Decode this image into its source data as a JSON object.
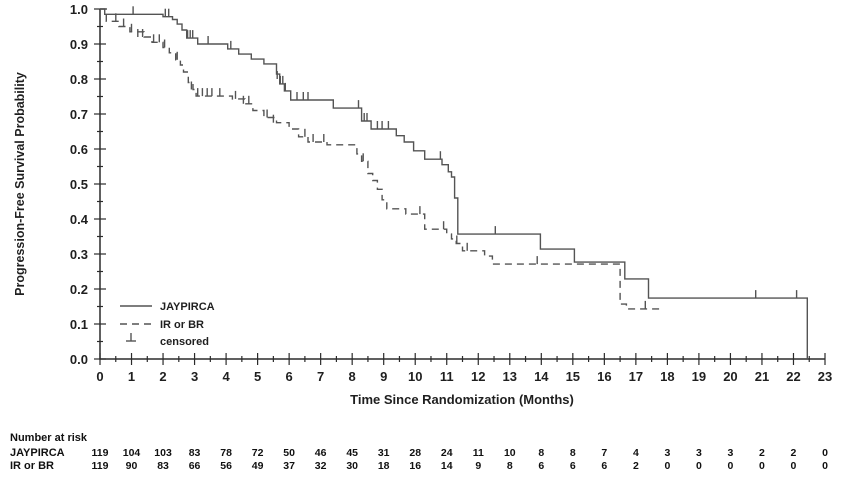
{
  "colors": {
    "background": "#ffffff",
    "axis": "#2b2b2b",
    "text": "#1f1f1f",
    "curve": "#545454"
  },
  "chart_data": {
    "type": "line",
    "subtype": "kaplan-meier-step",
    "xlabel": "Time Since Randomization (Months)",
    "ylabel": "Progression-Free Survival Probability",
    "xlim": [
      0,
      23
    ],
    "ylim": [
      0.0,
      1.0
    ],
    "x_major_tick_interval": 1,
    "x_minor_tick_interval": 0.5,
    "y_major_tick_interval": 0.1,
    "y_minor_tick_interval": 0.05,
    "grid": false,
    "legend_position": "lower-left-inside",
    "legend": [
      {
        "label": "JAYPIRCA",
        "style": "solid-line"
      },
      {
        "label": "IR or BR",
        "style": "dashed-line"
      },
      {
        "label": "censored",
        "style": "tack-symbol"
      }
    ],
    "series": [
      {
        "name": "JAYPIRCA",
        "line_style": "solid",
        "color": "#545454",
        "steps": [
          [
            0,
            1.0
          ],
          [
            0.15,
            0.985
          ],
          [
            2.0,
            0.978
          ],
          [
            2.3,
            0.97
          ],
          [
            2.45,
            0.957
          ],
          [
            2.6,
            0.94
          ],
          [
            2.75,
            0.917
          ],
          [
            3.1,
            0.9
          ],
          [
            4.05,
            0.886
          ],
          [
            4.4,
            0.871
          ],
          [
            4.8,
            0.857
          ],
          [
            5.2,
            0.843
          ],
          [
            5.6,
            0.814
          ],
          [
            5.7,
            0.786
          ],
          [
            5.85,
            0.766
          ],
          [
            6.05,
            0.74
          ],
          [
            7.4,
            0.717
          ],
          [
            8.3,
            0.68
          ],
          [
            8.6,
            0.657
          ],
          [
            9.4,
            0.638
          ],
          [
            9.65,
            0.62
          ],
          [
            9.95,
            0.595
          ],
          [
            10.3,
            0.571
          ],
          [
            10.85,
            0.555
          ],
          [
            11.05,
            0.535
          ],
          [
            11.15,
            0.52
          ],
          [
            11.25,
            0.46
          ],
          [
            11.35,
            0.357
          ],
          [
            13.97,
            0.314
          ],
          [
            15.05,
            0.277
          ],
          [
            16.65,
            0.229
          ],
          [
            17.4,
            0.174
          ],
          [
            22.44,
            0.0
          ]
        ],
        "end_month": 22.44,
        "censored": [
          [
            1.05,
            0.985
          ],
          [
            2.07,
            0.978
          ],
          [
            2.18,
            0.978
          ],
          [
            2.78,
            0.917
          ],
          [
            2.86,
            0.917
          ],
          [
            2.94,
            0.917
          ],
          [
            3.43,
            0.9
          ],
          [
            4.15,
            0.886
          ],
          [
            5.62,
            0.8
          ],
          [
            5.72,
            0.786
          ],
          [
            5.8,
            0.786
          ],
          [
            5.88,
            0.766
          ],
          [
            6.25,
            0.74
          ],
          [
            6.45,
            0.74
          ],
          [
            6.6,
            0.74
          ],
          [
            8.2,
            0.717
          ],
          [
            8.38,
            0.68
          ],
          [
            8.47,
            0.68
          ],
          [
            8.8,
            0.657
          ],
          [
            8.95,
            0.657
          ],
          [
            9.15,
            0.657
          ],
          [
            10.8,
            0.571
          ],
          [
            12.54,
            0.357
          ],
          [
            20.8,
            0.174
          ],
          [
            22.1,
            0.174
          ]
        ]
      },
      {
        "name": "IR or BR",
        "line_style": "dashed",
        "color": "#545454",
        "steps": [
          [
            0,
            1.0
          ],
          [
            0.2,
            0.965
          ],
          [
            0.6,
            0.95
          ],
          [
            0.95,
            0.935
          ],
          [
            1.4,
            0.92
          ],
          [
            1.65,
            0.905
          ],
          [
            2.0,
            0.89
          ],
          [
            2.2,
            0.875
          ],
          [
            2.4,
            0.855
          ],
          [
            2.55,
            0.84
          ],
          [
            2.65,
            0.82
          ],
          [
            2.8,
            0.79
          ],
          [
            2.95,
            0.77
          ],
          [
            3.05,
            0.751
          ],
          [
            4.2,
            0.743
          ],
          [
            4.6,
            0.729
          ],
          [
            4.85,
            0.71
          ],
          [
            5.2,
            0.69
          ],
          [
            5.6,
            0.675
          ],
          [
            6.0,
            0.657
          ],
          [
            6.3,
            0.635
          ],
          [
            6.6,
            0.62
          ],
          [
            7.2,
            0.612
          ],
          [
            8.15,
            0.586
          ],
          [
            8.3,
            0.565
          ],
          [
            8.5,
            0.53
          ],
          [
            8.65,
            0.51
          ],
          [
            8.8,
            0.485
          ],
          [
            8.95,
            0.455
          ],
          [
            9.1,
            0.429
          ],
          [
            9.7,
            0.414
          ],
          [
            10.3,
            0.371
          ],
          [
            11.0,
            0.357
          ],
          [
            11.15,
            0.343
          ],
          [
            11.3,
            0.33
          ],
          [
            11.5,
            0.309
          ],
          [
            12.2,
            0.294
          ],
          [
            12.45,
            0.271
          ],
          [
            16.5,
            0.157
          ],
          [
            16.7,
            0.143
          ]
        ],
        "end_month": 17.78,
        "censored": [
          [
            0.5,
            0.965
          ],
          [
            0.75,
            0.95
          ],
          [
            1.0,
            0.935
          ],
          [
            1.2,
            0.92
          ],
          [
            1.35,
            0.92
          ],
          [
            1.7,
            0.905
          ],
          [
            1.88,
            0.905
          ],
          [
            2.05,
            0.89
          ],
          [
            2.45,
            0.855
          ],
          [
            2.9,
            0.77
          ],
          [
            3.1,
            0.751
          ],
          [
            3.25,
            0.751
          ],
          [
            3.4,
            0.751
          ],
          [
            3.55,
            0.751
          ],
          [
            3.8,
            0.751
          ],
          [
            4.3,
            0.743
          ],
          [
            4.55,
            0.729
          ],
          [
            4.72,
            0.729
          ],
          [
            5.3,
            0.69
          ],
          [
            5.5,
            0.675
          ],
          [
            6.5,
            0.635
          ],
          [
            6.76,
            0.62
          ],
          [
            7.1,
            0.62
          ],
          [
            8.35,
            0.565
          ],
          [
            10.15,
            0.414
          ],
          [
            10.9,
            0.371
          ],
          [
            11.32,
            0.33
          ],
          [
            11.65,
            0.309
          ],
          [
            13.87,
            0.271
          ],
          [
            17.3,
            0.143
          ]
        ]
      }
    ],
    "risk_table": {
      "title": "Number at risk",
      "months": [
        0,
        1,
        2,
        3,
        4,
        5,
        6,
        7,
        8,
        9,
        10,
        11,
        12,
        13,
        14,
        15,
        16,
        17,
        18,
        19,
        20,
        21,
        22,
        23
      ],
      "rows": [
        {
          "label": "JAYPIRCA",
          "values": [
            119,
            104,
            103,
            83,
            78,
            72,
            50,
            46,
            45,
            31,
            28,
            24,
            11,
            10,
            8,
            8,
            7,
            4,
            3,
            3,
            3,
            2,
            2,
            0
          ]
        },
        {
          "label": "IR or BR",
          "values": [
            119,
            90,
            83,
            66,
            56,
            49,
            37,
            32,
            30,
            18,
            16,
            14,
            9,
            8,
            6,
            6,
            6,
            2,
            0,
            0,
            0,
            0,
            0,
            0
          ]
        }
      ]
    }
  }
}
